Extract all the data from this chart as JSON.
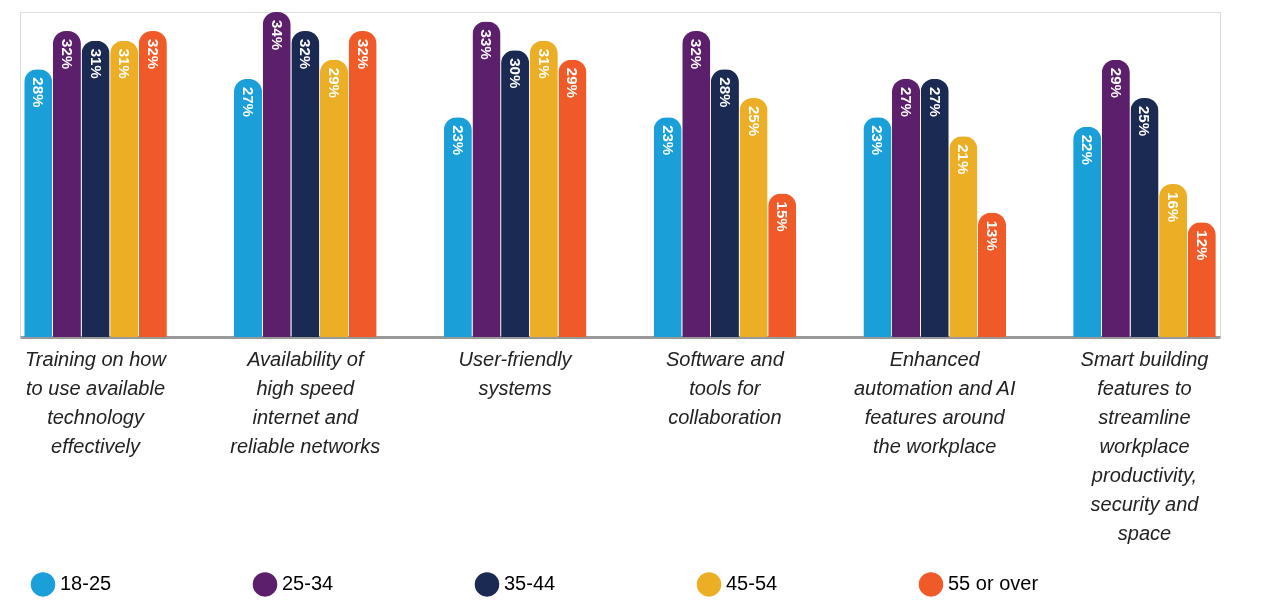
{
  "chart_data": {
    "type": "bar",
    "categories": [
      "Training on how to use available technology effectively",
      "Availability of high speed internet and reliable networks",
      "User-friendly systems",
      "Software and tools for collaboration",
      "Enhanced automation and AI features around the workplace",
      "Smart building features to streamline workplace productivity, security and space"
    ],
    "series": [
      {
        "name": "18-25",
        "color": "#1a9fd9",
        "values": [
          28,
          27,
          23,
          23,
          23,
          22
        ],
        "value_labels": [
          "28%",
          "27%",
          "23%",
          "23%",
          "23%",
          "22%"
        ]
      },
      {
        "name": "25-34",
        "color": "#5b1f6b",
        "values": [
          32,
          34,
          33,
          32,
          27,
          29
        ],
        "value_labels": [
          "32%",
          "34%",
          "33%",
          "32%",
          "27%",
          "29%"
        ]
      },
      {
        "name": "35-44",
        "color": "#1b2a52",
        "values": [
          31,
          32,
          30,
          28,
          27,
          25
        ],
        "value_labels": [
          "31%",
          "32%",
          "30%",
          "28%",
          "27%",
          "25%"
        ]
      },
      {
        "name": "45-54",
        "color": "#ecae24",
        "values": [
          31,
          29,
          31,
          25,
          21,
          16
        ],
        "value_labels": [
          "31%",
          "29%",
          "31%",
          "25%",
          "21%",
          "16%"
        ]
      },
      {
        "name": "55 or over",
        "color": "#f05a28",
        "values": [
          32,
          32,
          29,
          15,
          13,
          12
        ],
        "value_labels": [
          "32%",
          "32%",
          "29%",
          "15%",
          "13%",
          "12%"
        ]
      }
    ],
    "legend": "bottom",
    "grid": false
  }
}
